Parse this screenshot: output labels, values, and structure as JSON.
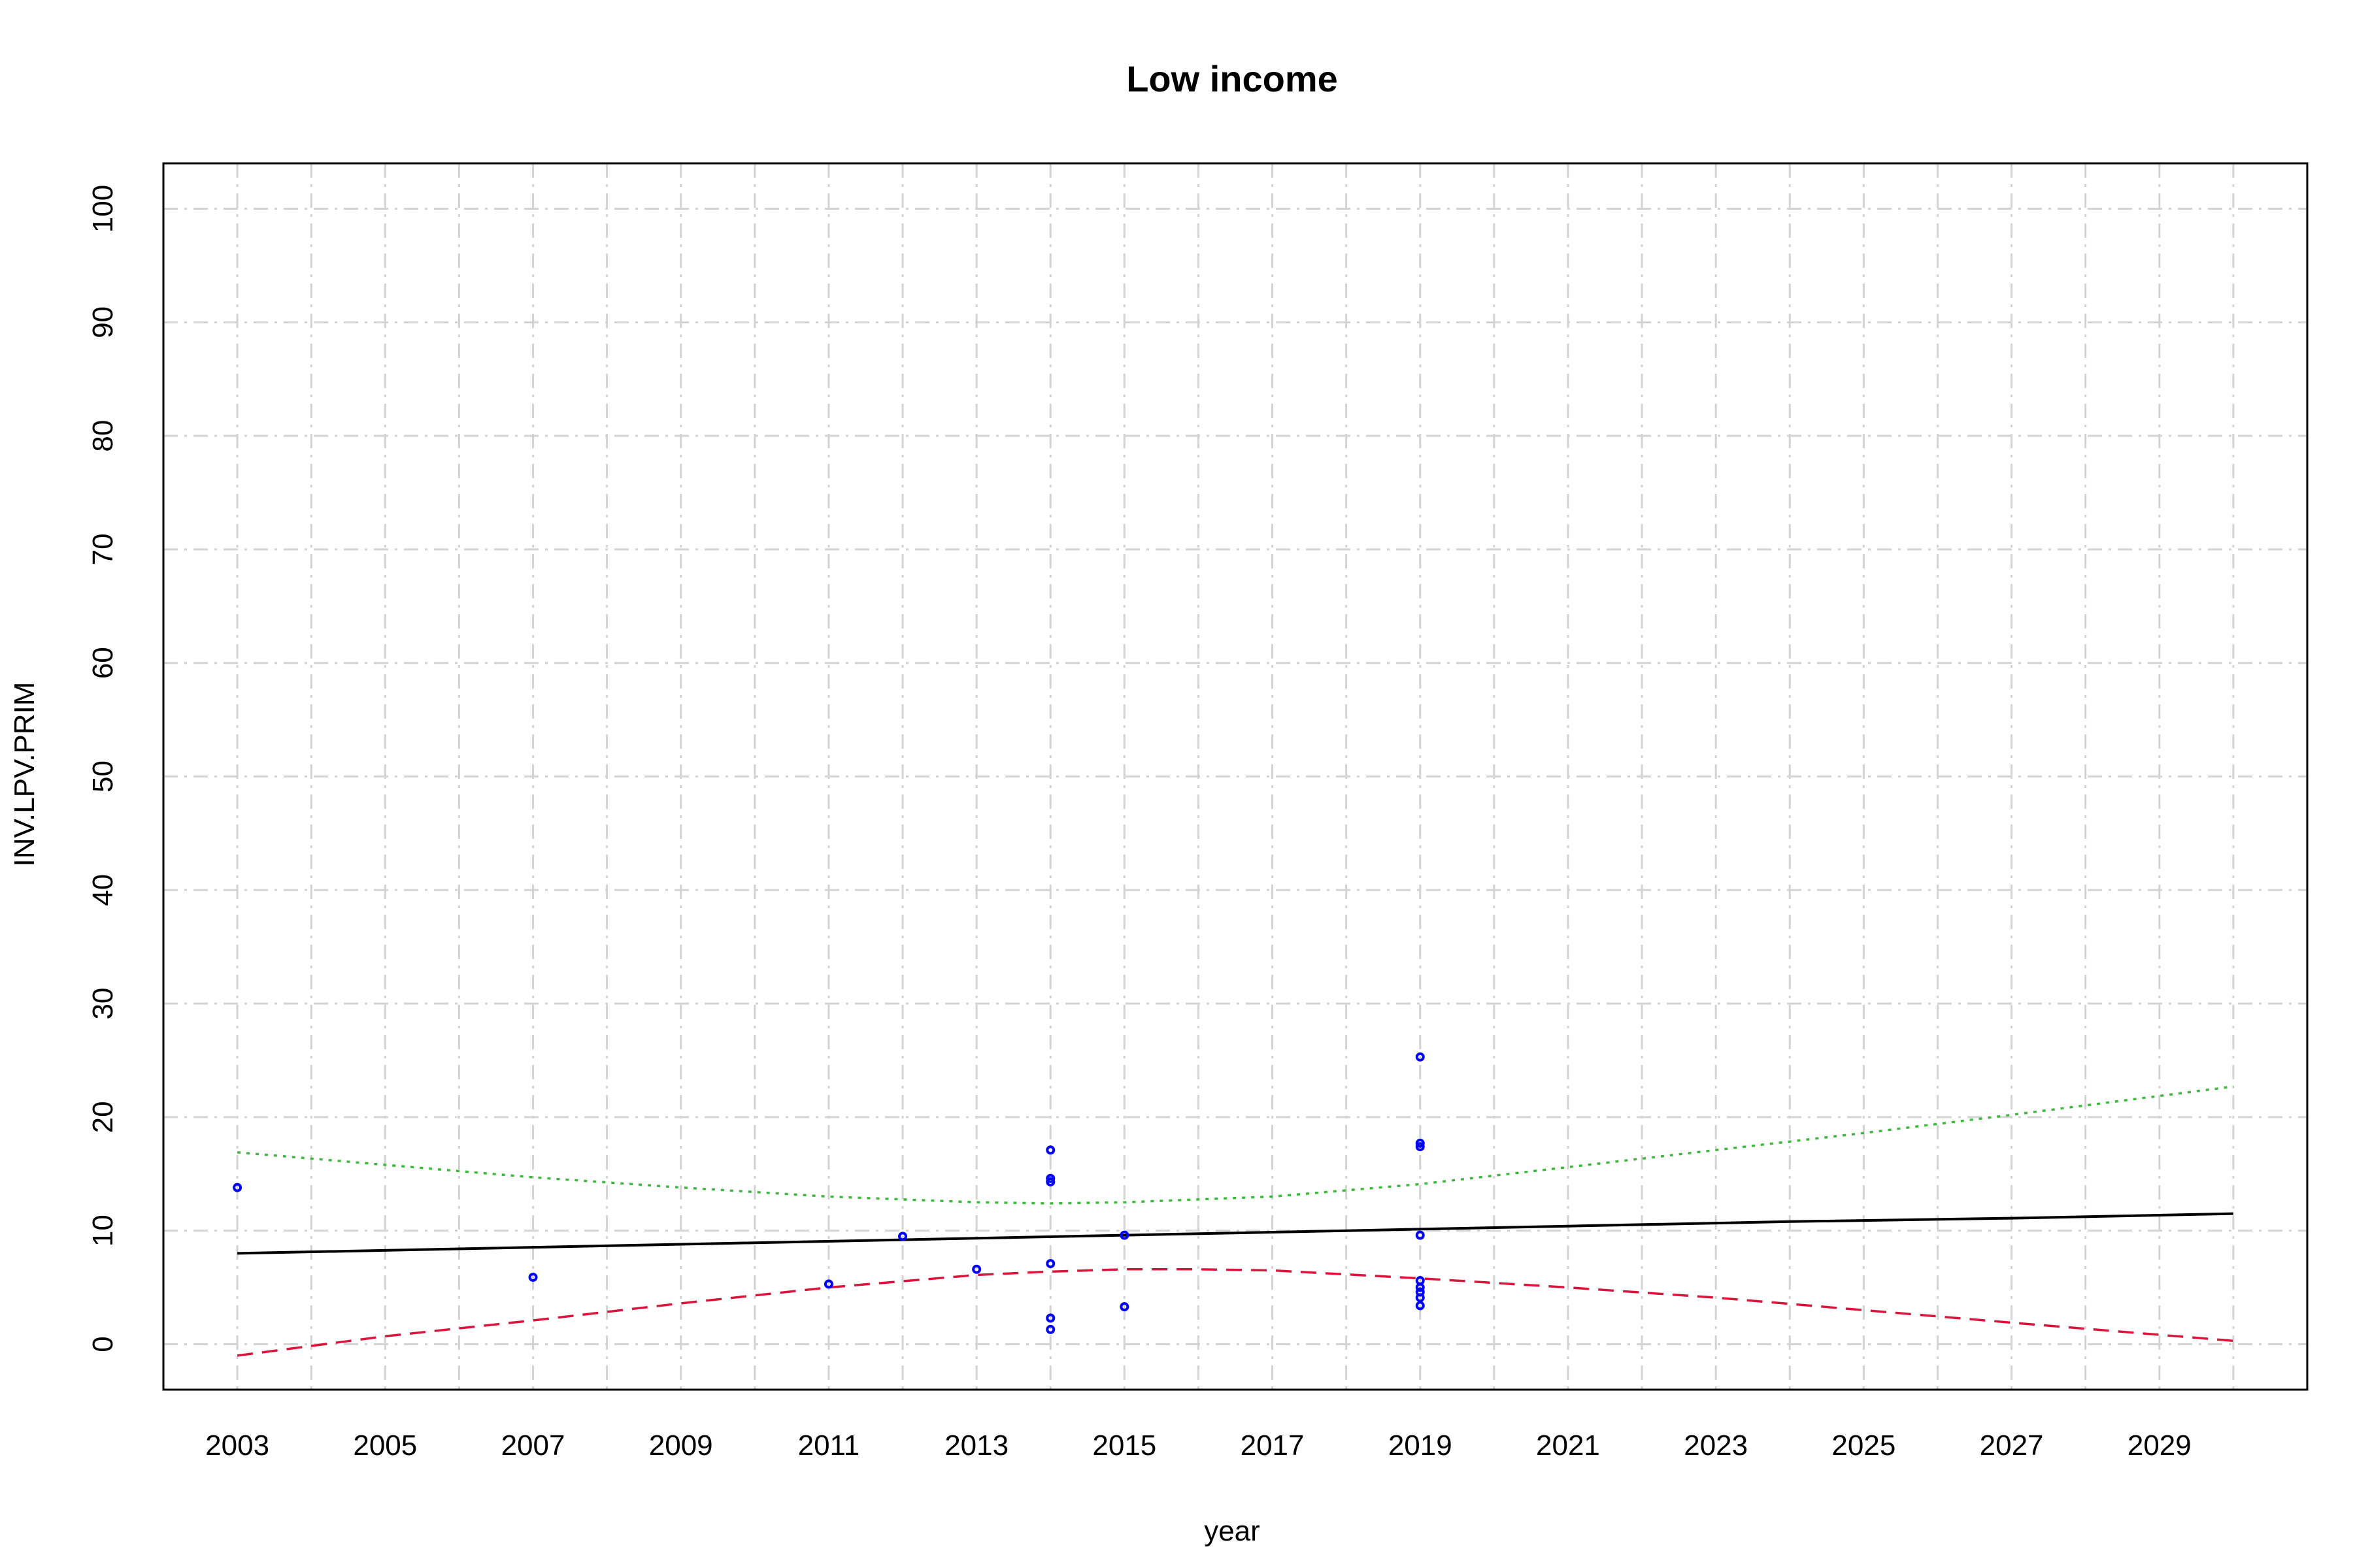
{
  "chart_data": {
    "type": "scatter",
    "title": "Low income",
    "xlabel": "year",
    "ylabel": "INV.LPV.PRIM",
    "xlim": [
      2002,
      2031
    ],
    "ylim": [
      -4,
      104
    ],
    "grid": true,
    "x_tick_labels": [
      "2003",
      "2005",
      "2007",
      "2009",
      "2011",
      "2013",
      "2015",
      "2017",
      "2019",
      "2021",
      "2023",
      "2025",
      "2027",
      "2029"
    ],
    "x_grid_values": [
      2003,
      2004,
      2005,
      2006,
      2007,
      2008,
      2009,
      2010,
      2011,
      2012,
      2013,
      2014,
      2015,
      2016,
      2017,
      2018,
      2019,
      2020,
      2021,
      2022,
      2023,
      2024,
      2025,
      2026,
      2027,
      2028,
      2029,
      2030
    ],
    "y_tick_labels": [
      "0",
      "10",
      "20",
      "30",
      "40",
      "50",
      "60",
      "70",
      "80",
      "90",
      "100"
    ],
    "colors": {
      "points": "#0000ff",
      "fit": "#000000",
      "upper": "#3cb83c",
      "lower": "#dc143c",
      "grid": "#d3d3d3"
    },
    "points": {
      "x": [
        2003,
        2007,
        2011,
        2012,
        2013,
        2014,
        2014,
        2014,
        2014,
        2014,
        2014,
        2015,
        2015,
        2019,
        2019,
        2019,
        2019,
        2019,
        2019,
        2019,
        2019,
        2019
      ],
      "y": [
        13.8,
        5.9,
        5.3,
        9.5,
        6.6,
        17.1,
        14.6,
        14.3,
        7.1,
        2.3,
        1.3,
        9.6,
        3.3,
        25.3,
        17.7,
        17.4,
        9.6,
        5.6,
        5.0,
        4.6,
        4.1,
        3.4
      ]
    },
    "series": [
      {
        "x": [
          2003,
          2006,
          2009,
          2012,
          2015,
          2018,
          2021,
          2024,
          2027,
          2030
        ],
        "y": [
          8.0,
          8.4,
          8.8,
          9.2,
          9.6,
          10.0,
          10.4,
          10.8,
          11.1,
          11.5
        ]
      },
      {
        "x": [
          2003,
          2005,
          2007,
          2009,
          2011,
          2013,
          2014,
          2015,
          2017,
          2019,
          2021,
          2023,
          2025,
          2027,
          2030
        ],
        "y": [
          16.9,
          15.8,
          14.7,
          13.8,
          13.0,
          12.5,
          12.4,
          12.5,
          13.0,
          14.1,
          15.6,
          17.1,
          18.6,
          20.2,
          22.7
        ]
      },
      {
        "x": [
          2003,
          2005,
          2007,
          2009,
          2011,
          2013,
          2014,
          2015,
          2016,
          2017,
          2019,
          2021,
          2023,
          2025,
          2027,
          2030
        ],
        "y": [
          -1.0,
          0.7,
          2.1,
          3.6,
          5.0,
          6.1,
          6.4,
          6.6,
          6.6,
          6.5,
          5.8,
          5.0,
          4.1,
          3.0,
          1.9,
          0.3
        ]
      }
    ]
  }
}
